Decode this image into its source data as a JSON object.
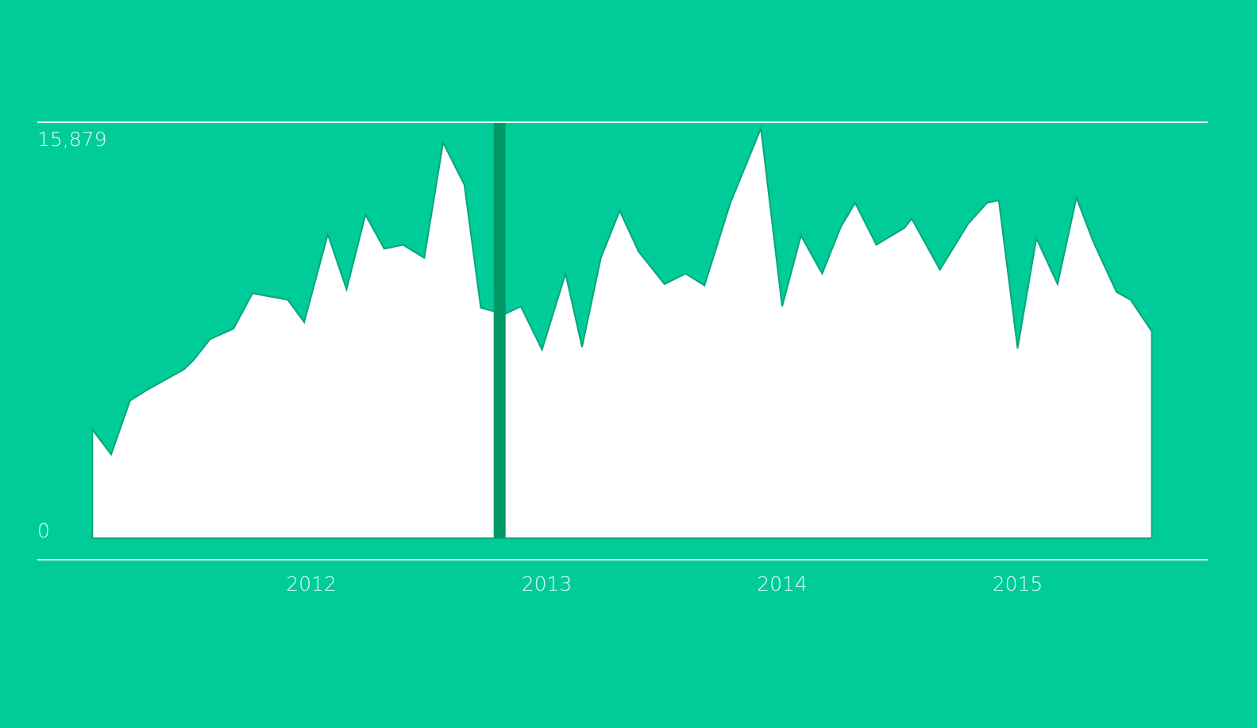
{
  "colors": {
    "background": "#00cc99",
    "area_fill": "#ffffff",
    "area_stroke": "#0aa57a",
    "gridline": "#d9fff2",
    "marker_bar": "#009966",
    "marker_bar_top": "#00803f"
  },
  "chart_data": {
    "type": "area",
    "title": "",
    "xlabel": "",
    "ylabel": "",
    "ylim": [
      0,
      15879
    ],
    "y_tick_labels": [
      "15,879",
      "0"
    ],
    "x_tick_labels": [
      "2012",
      "2013",
      "2014",
      "2015"
    ],
    "x_ticks": [
      2012.0,
      2013.0,
      2014.0,
      2015.0
    ],
    "grid": "top and bottom horizontal lines only",
    "marker_x": 2012.8,
    "series": [
      {
        "x": [
          2011.07,
          2011.15,
          2011.23,
          2011.3,
          2011.38,
          2011.46,
          2011.5,
          2011.57,
          2011.67,
          2011.75,
          2011.9,
          2011.97,
          2012.07,
          2012.15,
          2012.23,
          2012.31,
          2012.39,
          2012.48,
          2012.56,
          2012.65,
          2012.72,
          2012.82,
          2012.89,
          2012.98,
          2013.08,
          2013.15,
          2013.23,
          2013.31,
          2013.39,
          2013.5,
          2013.59,
          2013.67,
          2013.78,
          2013.91,
          2014.0,
          2014.08,
          2014.17,
          2014.25,
          2014.31,
          2014.4,
          2014.52,
          2014.55,
          2014.67,
          2014.79,
          2014.87,
          2014.92,
          2015.0,
          2015.08,
          2015.17,
          2015.25,
          2015.32,
          2015.42,
          2015.48,
          2015.57
        ],
        "values": [
          4150,
          3200,
          5250,
          5650,
          6050,
          6450,
          6800,
          7600,
          8000,
          9350,
          9100,
          8250,
          11600,
          9500,
          12350,
          11050,
          11200,
          10700,
          15100,
          13500,
          8800,
          8550,
          8850,
          7200,
          10100,
          7300,
          10700,
          12500,
          10950,
          9700,
          10100,
          9650,
          12800,
          15650,
          8850,
          11550,
          10100,
          11900,
          12800,
          11200,
          11850,
          12200,
          10250,
          12000,
          12800,
          12900,
          7250,
          11450,
          9700,
          13000,
          11350,
          9400,
          9100,
          7900
        ]
      }
    ]
  }
}
